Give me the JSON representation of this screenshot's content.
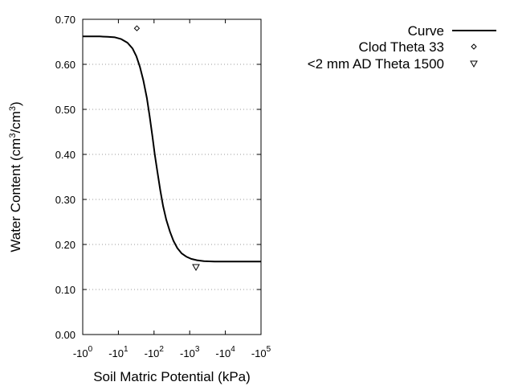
{
  "chart_data": {
    "type": "line",
    "xscale": "log",
    "xlim": [
      1,
      100000
    ],
    "ylim": [
      0.0,
      0.7
    ],
    "x_ticks": [
      {
        "value": 1,
        "base": "-10",
        "exp": "0"
      },
      {
        "value": 10,
        "base": "-10",
        "exp": "1"
      },
      {
        "value": 100,
        "base": "-10",
        "exp": "2"
      },
      {
        "value": 1000,
        "base": "-10",
        "exp": "3"
      },
      {
        "value": 10000,
        "base": "-10",
        "exp": "4"
      },
      {
        "value": 100000,
        "base": "-10",
        "exp": "5"
      }
    ],
    "y_ticks": [
      {
        "value": 0.0,
        "label": "0.00"
      },
      {
        "value": 0.1,
        "label": "0.10"
      },
      {
        "value": 0.2,
        "label": "0.20"
      },
      {
        "value": 0.3,
        "label": "0.30"
      },
      {
        "value": 0.4,
        "label": "0.40"
      },
      {
        "value": 0.5,
        "label": "0.50"
      },
      {
        "value": 0.6,
        "label": "0.60"
      },
      {
        "value": 0.7,
        "label": "0.70"
      }
    ],
    "xlabel": "Soil Matric Potential (kPa)",
    "ylabel": {
      "prefix": "Water Content (cm",
      "sup1": "3",
      "mid": "/cm",
      "sup2": "3",
      "suffix": ")"
    },
    "grid": "horizontal dotted",
    "legend_position": "top-right, outside plot",
    "series": [
      {
        "name": "Curve",
        "style": "line",
        "color": "#000000",
        "points": [
          [
            1,
            0.662
          ],
          [
            3,
            0.662
          ],
          [
            5,
            0.661
          ],
          [
            8,
            0.66
          ],
          [
            12,
            0.656
          ],
          [
            18,
            0.648
          ],
          [
            25,
            0.635
          ],
          [
            32,
            0.618
          ],
          [
            40,
            0.595
          ],
          [
            50,
            0.565
          ],
          [
            63,
            0.525
          ],
          [
            75,
            0.485
          ],
          [
            90,
            0.44
          ],
          [
            105,
            0.4
          ],
          [
            125,
            0.36
          ],
          [
            150,
            0.32
          ],
          [
            180,
            0.285
          ],
          [
            220,
            0.255
          ],
          [
            280,
            0.228
          ],
          [
            350,
            0.208
          ],
          [
            450,
            0.192
          ],
          [
            600,
            0.18
          ],
          [
            800,
            0.173
          ],
          [
            1100,
            0.168
          ],
          [
            1600,
            0.165
          ],
          [
            2500,
            0.163
          ],
          [
            5000,
            0.162
          ],
          [
            10000,
            0.162
          ],
          [
            100000,
            0.162
          ]
        ]
      },
      {
        "name": "Clod Theta 33",
        "style": "diamond",
        "color": "#000000",
        "points": [
          [
            33,
            0.68
          ]
        ]
      },
      {
        "name": "<2 mm AD Theta 1500",
        "style": "triangle-down",
        "color": "#000000",
        "points": [
          [
            1500,
            0.15
          ]
        ]
      }
    ]
  }
}
